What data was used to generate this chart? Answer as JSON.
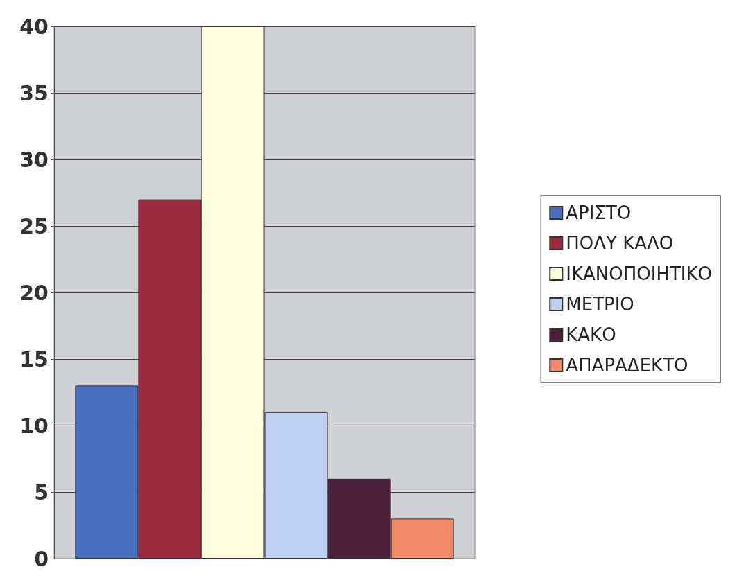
{
  "chart_data": {
    "type": "bar",
    "categories": [
      null
    ],
    "series": [
      {
        "name": "ΑΡΙΣΤΟ",
        "color": "#4a6fc0",
        "values": [
          13
        ]
      },
      {
        "name": "ΠΟΛΥ ΚΑΛΟ",
        "color": "#9b2a3f",
        "values": [
          27
        ]
      },
      {
        "name": "ΙΚΑΝΟΠΟΙΗΤΙΚΟ",
        "color": "#ffffe0",
        "values": [
          40
        ]
      },
      {
        "name": "ΜΕΤΡΙΟ",
        "color": "#c0d0f0",
        "values": [
          11
        ]
      },
      {
        "name": "ΚΑΚΟ",
        "color": "#4a2038",
        "values": [
          6
        ]
      },
      {
        "name": "ΑΠΑΡΑΔΕΚΤΟ",
        "color": "#f08a6a",
        "values": [
          3
        ]
      }
    ],
    "ylim": [
      0,
      40
    ],
    "yticks": [
      0,
      5,
      10,
      15,
      20,
      25,
      30,
      35,
      40
    ],
    "grid": "y",
    "legend": "right",
    "tick_labels": "y"
  }
}
